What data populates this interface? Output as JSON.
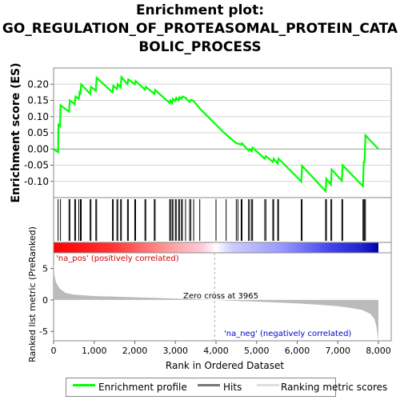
{
  "title": {
    "line1": "Enrichment plot:",
    "line2": "GO_REGULATION_OF_PROTEASOMAL_PROTEIN_CATA",
    "line3": "BOLIC_PROCESS"
  },
  "colors": {
    "profile": "#00ff00",
    "hits": "#000000",
    "metric_fill": "#bbbbbb",
    "frame": "#888888",
    "grid": "#d3d3d3",
    "pos_label": "#cc0000",
    "neg_label": "#0000cc"
  },
  "chart_data": [
    {
      "type": "line",
      "name": "enrichment-profile",
      "ylabel": "Enrichment score (ES)",
      "xlim": [
        0,
        8000
      ],
      "ylim": [
        -0.15,
        0.25
      ],
      "yticks": [
        -0.1,
        -0.05,
        0.0,
        0.05,
        0.1,
        0.15,
        0.2
      ],
      "ytick_labels": [
        "-0.10",
        "-0.05",
        "0.00",
        "0.05",
        "0.10",
        "0.15",
        "0.20"
      ],
      "grid": true,
      "points": [
        [
          0,
          0.0
        ],
        [
          110,
          -0.01
        ],
        [
          120,
          0.075
        ],
        [
          160,
          0.07
        ],
        [
          170,
          0.135
        ],
        [
          380,
          0.115
        ],
        [
          400,
          0.15
        ],
        [
          520,
          0.138
        ],
        [
          540,
          0.162
        ],
        [
          620,
          0.155
        ],
        [
          640,
          0.175
        ],
        [
          660,
          0.172
        ],
        [
          680,
          0.2
        ],
        [
          900,
          0.17
        ],
        [
          920,
          0.192
        ],
        [
          1040,
          0.18
        ],
        [
          1060,
          0.22
        ],
        [
          1450,
          0.175
        ],
        [
          1470,
          0.195
        ],
        [
          1560,
          0.185
        ],
        [
          1580,
          0.2
        ],
        [
          1650,
          0.19
        ],
        [
          1670,
          0.222
        ],
        [
          1820,
          0.2
        ],
        [
          1840,
          0.215
        ],
        [
          2000,
          0.2
        ],
        [
          2020,
          0.21
        ],
        [
          2250,
          0.183
        ],
        [
          2270,
          0.192
        ],
        [
          2480,
          0.17
        ],
        [
          2500,
          0.182
        ],
        [
          2860,
          0.142
        ],
        [
          2880,
          0.15
        ],
        [
          2920,
          0.142
        ],
        [
          2940,
          0.155
        ],
        [
          3000,
          0.148
        ],
        [
          3020,
          0.158
        ],
        [
          3080,
          0.15
        ],
        [
          3100,
          0.16
        ],
        [
          3150,
          0.155
        ],
        [
          3170,
          0.162
        ],
        [
          3250,
          0.158
        ],
        [
          3350,
          0.145
        ],
        [
          3380,
          0.152
        ],
        [
          3450,
          0.148
        ],
        [
          3600,
          0.125
        ],
        [
          4200,
          0.05
        ],
        [
          4500,
          0.018
        ],
        [
          4620,
          0.014
        ],
        [
          4640,
          0.018
        ],
        [
          4800,
          -0.005
        ],
        [
          4830,
          0.0
        ],
        [
          4880,
          -0.007
        ],
        [
          4900,
          0.004
        ],
        [
          5200,
          -0.03
        ],
        [
          5230,
          -0.022
        ],
        [
          5400,
          -0.04
        ],
        [
          5420,
          -0.03
        ],
        [
          5520,
          -0.045
        ],
        [
          5540,
          -0.03
        ],
        [
          6100,
          -0.1
        ],
        [
          6120,
          -0.052
        ],
        [
          6700,
          -0.13
        ],
        [
          6720,
          -0.092
        ],
        [
          6830,
          -0.11
        ],
        [
          6850,
          -0.063
        ],
        [
          7100,
          -0.098
        ],
        [
          7120,
          -0.05
        ],
        [
          7620,
          -0.115
        ],
        [
          7640,
          -0.04
        ],
        [
          7660,
          -0.04
        ],
        [
          7680,
          0.042
        ],
        [
          8000,
          0.0
        ]
      ]
    },
    {
      "type": "scatter",
      "name": "hits",
      "xlim": [
        0,
        8000
      ],
      "x": [
        110,
        170,
        380,
        400,
        520,
        540,
        620,
        660,
        680,
        900,
        920,
        1040,
        1060,
        1450,
        1470,
        1560,
        1580,
        1650,
        1670,
        1820,
        1840,
        2000,
        2020,
        2250,
        2270,
        2480,
        2500,
        2860,
        2880,
        2920,
        2940,
        3000,
        3020,
        3080,
        3100,
        3150,
        3170,
        3250,
        3350,
        3380,
        3450,
        3600,
        4000,
        4250,
        4500,
        4540,
        4620,
        4640,
        4800,
        4830,
        4880,
        4900,
        5200,
        5230,
        5400,
        5420,
        5520,
        5540,
        6100,
        6120,
        6700,
        6720,
        6830,
        6850,
        7100,
        7120,
        7620,
        7640,
        7660,
        7680
      ]
    },
    {
      "type": "area",
      "name": "ranked-list-metric",
      "xlabel": "Rank in Ordered Dataset",
      "ylabel": "Ranked list metric (PreRanked)",
      "xlim": [
        0,
        8000
      ],
      "ylim": [
        -6.5,
        7.5
      ],
      "yticks": [
        -5,
        0,
        5
      ],
      "ytick_labels": [
        "-5",
        "0",
        "5"
      ],
      "xticks": [
        0,
        1000,
        2000,
        3000,
        4000,
        5000,
        6000,
        7000,
        8000
      ],
      "xtick_labels": [
        "0",
        "1,000",
        "2,000",
        "3,000",
        "4,000",
        "5,000",
        "6,000",
        "7,000",
        "8,000"
      ],
      "points": [
        [
          0,
          6.0
        ],
        [
          20,
          4.0
        ],
        [
          60,
          2.8
        ],
        [
          150,
          1.8
        ],
        [
          300,
          1.1
        ],
        [
          500,
          0.85
        ],
        [
          1000,
          0.62
        ],
        [
          1500,
          0.52
        ],
        [
          2000,
          0.42
        ],
        [
          2500,
          0.32
        ],
        [
          3000,
          0.22
        ],
        [
          3500,
          0.1
        ],
        [
          3965,
          0.0
        ],
        [
          4500,
          -0.15
        ],
        [
          5000,
          -0.28
        ],
        [
          5500,
          -0.4
        ],
        [
          6000,
          -0.55
        ],
        [
          6500,
          -0.75
        ],
        [
          7000,
          -1.0
        ],
        [
          7300,
          -1.25
        ],
        [
          7600,
          -1.6
        ],
        [
          7800,
          -2.2
        ],
        [
          7900,
          -3.0
        ],
        [
          7950,
          -4.2
        ],
        [
          7980,
          -5.5
        ],
        [
          8000,
          -6.5
        ]
      ],
      "annotations": {
        "zero_cross": "Zero cross at 3965",
        "zero_cross_x": 3965,
        "pos_label": "'na_pos' (positively correlated)",
        "neg_label": "'na_neg' (negatively correlated)"
      }
    }
  ],
  "legend": {
    "items": [
      "Enrichment profile",
      "Hits",
      "Ranking metric scores"
    ]
  }
}
